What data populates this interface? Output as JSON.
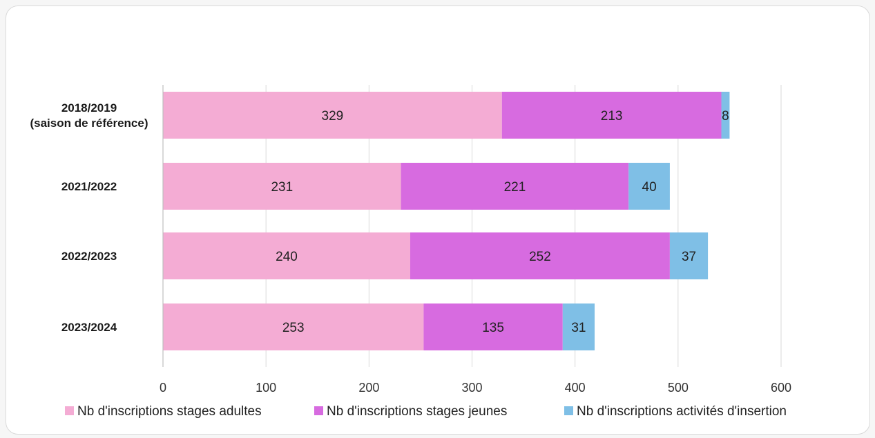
{
  "chart_data": {
    "type": "bar",
    "orientation": "horizontal",
    "stacked": true,
    "title": "",
    "xlabel": "",
    "ylabel": "",
    "categories": [
      [
        "2018/2019",
        "(saison de référence)"
      ],
      [
        "2021/2022"
      ],
      [
        "2022/2023"
      ],
      [
        "2023/2024"
      ]
    ],
    "series": [
      {
        "name": "Nb d'inscriptions stages adultes",
        "color": "#f4acd4",
        "values": [
          329,
          231,
          240,
          253
        ]
      },
      {
        "name": "Nb d'inscriptions stages jeunes",
        "color": "#d76be0",
        "values": [
          213,
          221,
          252,
          135
        ]
      },
      {
        "name": "Nb d'inscriptions activités d'insertion",
        "color": "#7fbfe6",
        "values": [
          8,
          40,
          37,
          31
        ]
      }
    ],
    "xlim": [
      0,
      600
    ],
    "xticks": [
      0,
      100,
      200,
      300,
      400,
      500,
      600
    ],
    "grid": true,
    "legend_position": "bottom"
  }
}
